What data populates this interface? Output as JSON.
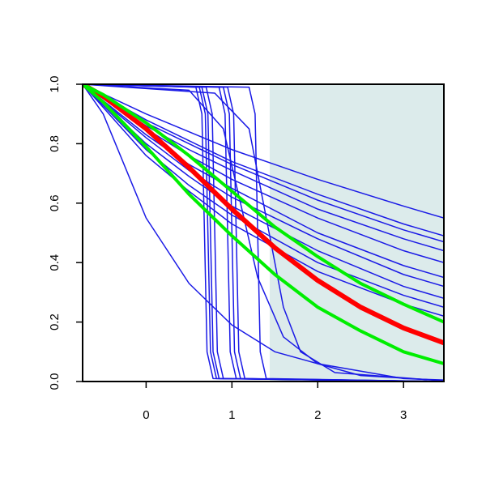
{
  "chart_data": {
    "type": "line",
    "xlim": [
      -0.74,
      3.47
    ],
    "ylim": [
      0,
      1
    ],
    "xticks": [
      0,
      1,
      2,
      3
    ],
    "yticks": [
      {
        "value": 0,
        "label": "0.0"
      },
      0.2,
      0.4,
      0.6,
      0.8,
      {
        "value": 1,
        "label": "1.0"
      }
    ],
    "shaded_region": {
      "xmin": 1.44,
      "color": "#dcebeb"
    },
    "series": [
      {
        "color": "#1a1ae6",
        "width": 1.5,
        "x": [
          -0.74,
          0,
          0.5,
          1,
          2,
          3,
          3.47
        ],
        "values": [
          1,
          0.9,
          0.84,
          0.78,
          0.68,
          0.59,
          0.55
        ]
      },
      {
        "color": "#1a1ae6",
        "width": 1.5,
        "x": [
          -0.74,
          0,
          0.5,
          1,
          2,
          3,
          3.47
        ],
        "values": [
          1,
          0.88,
          0.81,
          0.74,
          0.63,
          0.53,
          0.49
        ]
      },
      {
        "color": "#1a1ae6",
        "width": 1.5,
        "x": [
          -0.74,
          0,
          0.5,
          1,
          2,
          3,
          3.47
        ],
        "values": [
          1,
          0.87,
          0.8,
          0.73,
          0.61,
          0.51,
          0.47
        ]
      },
      {
        "color": "#1a1ae6",
        "width": 1.5,
        "x": [
          -0.74,
          0,
          0.5,
          1,
          2,
          3,
          3.47
        ],
        "values": [
          1,
          0.86,
          0.78,
          0.71,
          0.58,
          0.48,
          0.44
        ]
      },
      {
        "color": "#1a1ae6",
        "width": 1.5,
        "x": [
          -0.74,
          0,
          0.5,
          1,
          2,
          3,
          3.47
        ],
        "values": [
          1,
          0.85,
          0.76,
          0.68,
          0.55,
          0.44,
          0.4
        ]
      },
      {
        "color": "#1a1ae6",
        "width": 1.5,
        "x": [
          -0.74,
          0,
          0.5,
          1,
          2,
          3,
          3.47
        ],
        "values": [
          1,
          0.83,
          0.73,
          0.65,
          0.5,
          0.39,
          0.35
        ]
      },
      {
        "color": "#1a1ae6",
        "width": 1.5,
        "x": [
          -0.74,
          0,
          0.5,
          1,
          2,
          3,
          3.47
        ],
        "values": [
          1,
          0.82,
          0.71,
          0.62,
          0.48,
          0.36,
          0.32
        ]
      },
      {
        "color": "#1a1ae6",
        "width": 1.5,
        "x": [
          -0.74,
          0,
          0.5,
          1,
          2,
          3,
          3.47
        ],
        "values": [
          1,
          0.8,
          0.69,
          0.59,
          0.44,
          0.32,
          0.28
        ]
      },
      {
        "color": "#1a1ae6",
        "width": 1.5,
        "x": [
          -0.74,
          0,
          0.5,
          1,
          2,
          3,
          3.47
        ],
        "values": [
          1,
          0.78,
          0.66,
          0.56,
          0.4,
          0.29,
          0.25
        ]
      },
      {
        "color": "#1a1ae6",
        "width": 1.5,
        "x": [
          -0.74,
          0,
          0.5,
          1,
          2,
          3,
          3.47
        ],
        "values": [
          1,
          0.76,
          0.64,
          0.53,
          0.37,
          0.26,
          0.22
        ]
      },
      {
        "color": "#1a1ae6",
        "width": 1.5,
        "x": [
          -0.74,
          -0.5,
          0,
          0.5,
          1,
          1.5,
          2,
          3,
          3.47
        ],
        "values": [
          1,
          0.9,
          0.55,
          0.33,
          0.19,
          0.1,
          0.06,
          0.01,
          0.005
        ]
      },
      {
        "color": "#1a1ae6",
        "width": 1.5,
        "x": [
          -0.74,
          0.58,
          0.65,
          0.68,
          0.71,
          0.78,
          3.47
        ],
        "values": [
          1,
          0.99,
          0.9,
          0.5,
          0.1,
          0.01,
          0
        ]
      },
      {
        "color": "#1a1ae6",
        "width": 1.5,
        "x": [
          -0.74,
          0.62,
          0.69,
          0.72,
          0.75,
          0.82,
          3.47
        ],
        "values": [
          1,
          0.99,
          0.9,
          0.5,
          0.1,
          0.01,
          0
        ]
      },
      {
        "color": "#1a1ae6",
        "width": 1.5,
        "x": [
          -0.74,
          0.65,
          0.72,
          0.75,
          0.78,
          0.85,
          3.47
        ],
        "values": [
          1,
          0.99,
          0.9,
          0.5,
          0.1,
          0.01,
          0
        ]
      },
      {
        "color": "#1a1ae6",
        "width": 1.5,
        "x": [
          -0.74,
          0.7,
          0.77,
          0.8,
          0.83,
          0.9,
          3.47
        ],
        "values": [
          1,
          0.99,
          0.9,
          0.5,
          0.1,
          0.01,
          0
        ]
      },
      {
        "color": "#1a1ae6",
        "width": 1.5,
        "x": [
          -0.74,
          0.85,
          0.92,
          0.95,
          0.98,
          1.05,
          3.47
        ],
        "values": [
          1,
          0.99,
          0.9,
          0.5,
          0.1,
          0.01,
          0
        ]
      },
      {
        "color": "#1a1ae6",
        "width": 1.5,
        "x": [
          -0.74,
          0.9,
          0.97,
          1,
          1.03,
          1.1,
          3.47
        ],
        "values": [
          1,
          0.99,
          0.9,
          0.5,
          0.1,
          0.01,
          0
        ]
      },
      {
        "color": "#1a1ae6",
        "width": 1.5,
        "x": [
          -0.74,
          0.95,
          1.02,
          1.05,
          1.08,
          1.15,
          3.47
        ],
        "values": [
          1,
          0.99,
          0.9,
          0.5,
          0.1,
          0.01,
          0
        ]
      },
      {
        "color": "#1a1ae6",
        "width": 1.5,
        "x": [
          -0.74,
          1.2,
          1.27,
          1.3,
          1.33,
          1.4,
          3.47
        ],
        "values": [
          1,
          0.99,
          0.9,
          0.5,
          0.1,
          0.01,
          0
        ]
      },
      {
        "color": "#1a1ae6",
        "width": 1.5,
        "x": [
          -0.74,
          0.5,
          0.9,
          1.1,
          1.3,
          1.6,
          2,
          2.5,
          3.47
        ],
        "values": [
          1,
          0.98,
          0.85,
          0.6,
          0.35,
          0.15,
          0.06,
          0.02,
          0.003
        ]
      },
      {
        "color": "#1a1ae6",
        "width": 1.5,
        "x": [
          -0.74,
          0.8,
          1.2,
          1.4,
          1.6,
          1.8,
          2.2,
          3.47
        ],
        "values": [
          1,
          0.97,
          0.85,
          0.55,
          0.25,
          0.1,
          0.03,
          0.002
        ]
      },
      {
        "color": "#1a1ae6",
        "width": 1.5,
        "x": [
          -0.74,
          1.45
        ],
        "values": [
          1,
          1
        ]
      },
      {
        "color": "#ff0000",
        "width": 6,
        "x": [
          -0.74,
          -0.5,
          0,
          0.5,
          1,
          1.5,
          2,
          2.5,
          3,
          3.47
        ],
        "values": [
          1,
          0.96,
          0.85,
          0.72,
          0.58,
          0.45,
          0.34,
          0.25,
          0.18,
          0.13
        ]
      },
      {
        "color": "#00ee00",
        "width": 4,
        "x": [
          -0.74,
          -0.5,
          0,
          0.5,
          1,
          1.5,
          2,
          2.5,
          3,
          3.47
        ],
        "values": [
          1,
          0.965,
          0.87,
          0.76,
          0.64,
          0.52,
          0.42,
          0.33,
          0.26,
          0.2
        ]
      },
      {
        "color": "#00ee00",
        "width": 4,
        "x": [
          -0.74,
          -0.5,
          0,
          0.5,
          1,
          1.5,
          2,
          2.5,
          3,
          3.47
        ],
        "values": [
          1,
          0.94,
          0.79,
          0.63,
          0.49,
          0.36,
          0.25,
          0.17,
          0.1,
          0.06
        ]
      }
    ]
  }
}
